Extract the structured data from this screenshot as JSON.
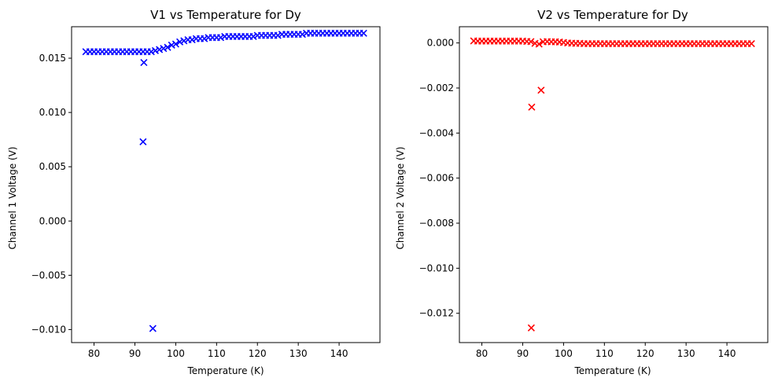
{
  "chart_data": [
    {
      "type": "scatter",
      "title": "V1 vs Temperature for Dy",
      "xlabel": "Temperature (K)",
      "ylabel": "Channel 1 Voltage (V)",
      "xlim": [
        74.5,
        150
      ],
      "ylim": [
        -0.0112,
        0.0179
      ],
      "xticks": [
        80,
        90,
        100,
        110,
        120,
        130,
        140
      ],
      "xtick_labels": [
        "80",
        "90",
        "100",
        "110",
        "120",
        "130",
        "140"
      ],
      "yticks": [
        0.015,
        0.01,
        0.005,
        0.0,
        -0.005,
        -0.01
      ],
      "ytick_labels": [
        "0.015",
        "0.010",
        "0.005",
        "0.000",
        "−0.005",
        "−0.010"
      ],
      "marker": "x",
      "color": "#0000ff",
      "grid": false,
      "series": [
        {
          "x": [
            78,
            79,
            80,
            81,
            82,
            83,
            84,
            85,
            86,
            87,
            88,
            89,
            90,
            91,
            92,
            93,
            94,
            95,
            96,
            97,
            98,
            99,
            100,
            101,
            102,
            103,
            104,
            105,
            106,
            107,
            108,
            109,
            110,
            111,
            112,
            113,
            114,
            115,
            116,
            117,
            118,
            119,
            120,
            121,
            122,
            123,
            124,
            125,
            126,
            127,
            128,
            129,
            130,
            131,
            132,
            133,
            134,
            135,
            136,
            137,
            138,
            139,
            140,
            141,
            142,
            143,
            144,
            145,
            146,
            92.2,
            92.0,
            94.4
          ],
          "y": [
            0.0156,
            0.0156,
            0.0156,
            0.0156,
            0.0156,
            0.0156,
            0.0156,
            0.0156,
            0.0156,
            0.0156,
            0.0156,
            0.0156,
            0.0156,
            0.0156,
            0.0156,
            0.0156,
            0.0156,
            0.0157,
            0.0158,
            0.0159,
            0.016,
            0.0162,
            0.0163,
            0.0165,
            0.0166,
            0.0167,
            0.0167,
            0.0168,
            0.0168,
            0.0168,
            0.0169,
            0.0169,
            0.0169,
            0.0169,
            0.017,
            0.017,
            0.017,
            0.017,
            0.017,
            0.017,
            0.017,
            0.017,
            0.0171,
            0.0171,
            0.0171,
            0.0171,
            0.0171,
            0.0171,
            0.0172,
            0.0172,
            0.0172,
            0.0172,
            0.0172,
            0.0172,
            0.0173,
            0.0173,
            0.0173,
            0.0173,
            0.0173,
            0.0173,
            0.0173,
            0.0173,
            0.0173,
            0.0173,
            0.0173,
            0.0173,
            0.0173,
            0.0173,
            0.0173,
            0.0146,
            0.0073,
            -0.0099
          ]
        }
      ]
    },
    {
      "type": "scatter",
      "title": "V2 vs Temperature for Dy",
      "xlabel": "Temperature (K)",
      "ylabel": "Channel 2 Voltage (V)",
      "xlim": [
        74.5,
        150
      ],
      "ylim": [
        -0.0133,
        0.00072
      ],
      "xticks": [
        80,
        90,
        100,
        110,
        120,
        130,
        140
      ],
      "xtick_labels": [
        "80",
        "90",
        "100",
        "110",
        "120",
        "130",
        "140"
      ],
      "yticks": [
        0.0,
        -0.002,
        -0.004,
        -0.006,
        -0.008,
        -0.01,
        -0.012
      ],
      "ytick_labels": [
        "0.000",
        "−0.002",
        "−0.004",
        "−0.006",
        "−0.008",
        "−0.010",
        "−0.012"
      ],
      "marker": "x",
      "color": "#ff0000",
      "grid": false,
      "series": [
        {
          "x": [
            78,
            79,
            80,
            81,
            82,
            83,
            84,
            85,
            86,
            87,
            88,
            89,
            90,
            91,
            92,
            93,
            94,
            95,
            96,
            97,
            98,
            99,
            100,
            101,
            102,
            103,
            104,
            105,
            106,
            107,
            108,
            109,
            110,
            111,
            112,
            113,
            114,
            115,
            116,
            117,
            118,
            119,
            120,
            121,
            122,
            123,
            124,
            125,
            126,
            127,
            128,
            129,
            130,
            131,
            132,
            133,
            134,
            135,
            136,
            137,
            138,
            139,
            140,
            141,
            142,
            143,
            144,
            145,
            146,
            92.2,
            94.5,
            92.1
          ],
          "y": [
            9e-05,
            8e-05,
            8e-05,
            8e-05,
            8e-05,
            8e-05,
            8e-05,
            8e-05,
            8e-05,
            8e-05,
            8e-05,
            8e-05,
            8e-05,
            7e-05,
            6e-05,
            -2e-05,
            -5e-05,
            5e-05,
            6e-05,
            5e-05,
            5e-05,
            4e-05,
            2e-05,
            0.0,
            -1e-05,
            -2e-05,
            -2e-05,
            -3e-05,
            -3e-05,
            -3e-05,
            -3e-05,
            -3e-05,
            -3e-05,
            -3e-05,
            -3e-05,
            -3e-05,
            -3e-05,
            -3e-05,
            -3e-05,
            -3e-05,
            -3e-05,
            -3e-05,
            -3e-05,
            -3e-05,
            -3e-05,
            -3e-05,
            -3e-05,
            -3e-05,
            -3e-05,
            -3e-05,
            -3e-05,
            -3e-05,
            -3e-05,
            -3e-05,
            -3e-05,
            -3e-05,
            -3e-05,
            -3e-05,
            -3e-05,
            -3e-05,
            -3e-05,
            -3e-05,
            -3e-05,
            -3e-05,
            -3e-05,
            -3e-05,
            -3e-05,
            -3e-05,
            -3e-05,
            -0.00285,
            -0.0021,
            -0.01265
          ]
        }
      ]
    }
  ]
}
